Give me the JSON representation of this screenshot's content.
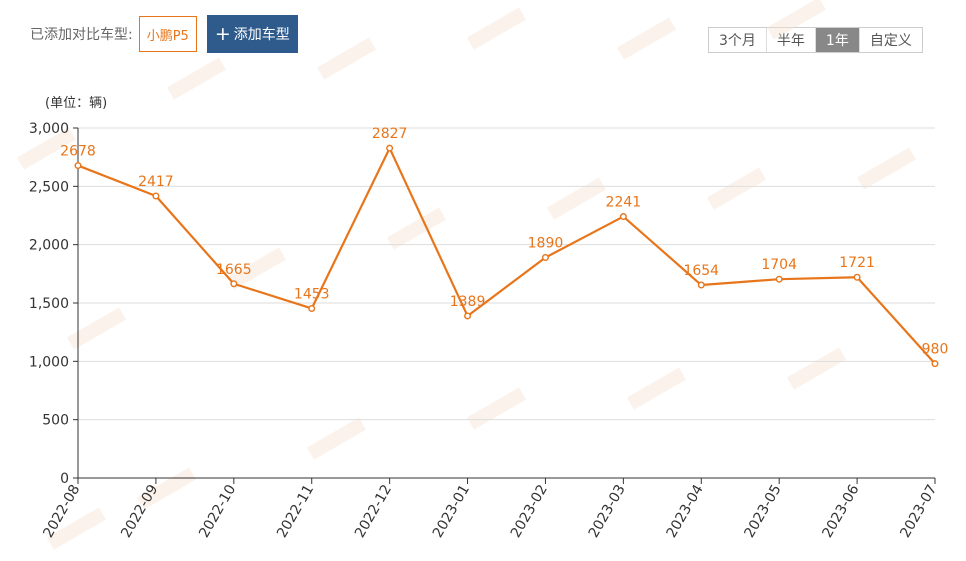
{
  "compare": {
    "label": "已添加对比车型:",
    "model": "小鹏P5",
    "add_label": "添加车型",
    "plus": "+"
  },
  "range_tabs": [
    {
      "label": "3个月",
      "active": false
    },
    {
      "label": "半年",
      "active": false
    },
    {
      "label": "1年",
      "active": true
    },
    {
      "label": "自定义",
      "active": false
    }
  ],
  "colors": {
    "accent": "#e8751a",
    "button": "#2f5b8c",
    "tab_active": "#888888"
  },
  "chart_data": {
    "type": "line",
    "unit_label": "(单位：辆)",
    "categories": [
      "2022-08",
      "2022-09",
      "2022-10",
      "2022-11",
      "2022-12",
      "2023-01",
      "2023-02",
      "2023-03",
      "2023-04",
      "2023-05",
      "2023-06",
      "2023-07"
    ],
    "series": [
      {
        "values": [
          2678,
          2417,
          1665,
          1453,
          2827,
          1389,
          1890,
          2241,
          1654,
          1704,
          1721,
          980
        ]
      }
    ],
    "yticks": [
      0,
      500,
      1000,
      1500,
      2000,
      2500,
      3000
    ],
    "ytick_labels": [
      "0",
      "500",
      "1,000",
      "1,500",
      "2,000",
      "2,500",
      "3,000"
    ],
    "ylim": [
      0,
      3000
    ],
    "grid": true,
    "line_color": "#e8751a"
  }
}
